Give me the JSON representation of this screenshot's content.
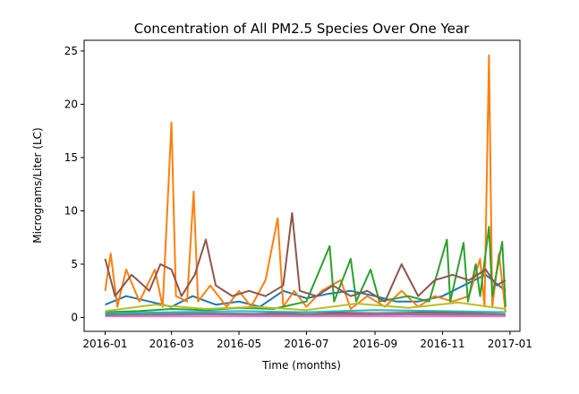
{
  "chart_data": {
    "type": "line",
    "title": "Concentration of All PM2.5 Species Over One Year",
    "xlabel": "Time (months)",
    "ylabel": "Micrograms/Liter (LC)",
    "x_tick_labels": [
      "2016-01",
      "2016-03",
      "2016-05",
      "2016-07",
      "2016-09",
      "2016-11",
      "2017-01"
    ],
    "x_ticks": [
      "2016-01-01",
      "2016-03-01",
      "2016-05-01",
      "2016-07-01",
      "2016-09-01",
      "2016-11-01",
      "2017-01-01"
    ],
    "xlim": [
      "2015-12-13",
      "2017-01-10"
    ],
    "y_ticks": [
      0,
      5,
      10,
      15,
      20,
      25
    ],
    "ylim": [
      -1.3,
      26.0
    ],
    "grid": false,
    "legend": "none",
    "series": [
      {
        "color": "#1f77b4",
        "points": [
          [
            "2016-01-01",
            1.2
          ],
          [
            "2016-01-20",
            2.0
          ],
          [
            "2016-02-10",
            1.5
          ],
          [
            "2016-03-01",
            1.0
          ],
          [
            "2016-03-20",
            2.0
          ],
          [
            "2016-04-10",
            1.2
          ],
          [
            "2016-05-01",
            1.5
          ],
          [
            "2016-05-20",
            1.0
          ],
          [
            "2016-06-10",
            2.5
          ],
          [
            "2016-07-01",
            1.8
          ],
          [
            "2016-07-20",
            2.2
          ],
          [
            "2016-08-10",
            2.5
          ],
          [
            "2016-09-01",
            2.0
          ],
          [
            "2016-09-20",
            1.5
          ],
          [
            "2016-10-10",
            1.5
          ],
          [
            "2016-11-01",
            2.0
          ],
          [
            "2016-11-20",
            3.0
          ],
          [
            "2016-12-10",
            4.0
          ],
          [
            "2016-12-28",
            2.5
          ]
        ]
      },
      {
        "color": "#ff7f0e",
        "points": [
          [
            "2016-01-01",
            2.5
          ],
          [
            "2016-01-06",
            6.0
          ],
          [
            "2016-01-12",
            1.0
          ],
          [
            "2016-01-20",
            4.5
          ],
          [
            "2016-02-01",
            1.5
          ],
          [
            "2016-02-15",
            4.5
          ],
          [
            "2016-02-22",
            1.0
          ],
          [
            "2016-03-01",
            18.3
          ],
          [
            "2016-03-05",
            2.0
          ],
          [
            "2016-03-15",
            1.5
          ],
          [
            "2016-03-21",
            11.8
          ],
          [
            "2016-03-25",
            1.5
          ],
          [
            "2016-04-05",
            3.0
          ],
          [
            "2016-04-20",
            1.0
          ],
          [
            "2016-05-01",
            2.5
          ],
          [
            "2016-05-12",
            1.0
          ],
          [
            "2016-05-25",
            3.5
          ],
          [
            "2016-06-05",
            9.3
          ],
          [
            "2016-06-10",
            1.0
          ],
          [
            "2016-06-20",
            2.5
          ],
          [
            "2016-07-01",
            1.0
          ],
          [
            "2016-07-15",
            2.5
          ],
          [
            "2016-08-01",
            3.5
          ],
          [
            "2016-08-10",
            0.8
          ],
          [
            "2016-08-25",
            2.0
          ],
          [
            "2016-09-10",
            1.0
          ],
          [
            "2016-09-25",
            2.5
          ],
          [
            "2016-10-10",
            1.0
          ],
          [
            "2016-10-25",
            2.0
          ],
          [
            "2016-11-10",
            1.5
          ],
          [
            "2016-11-25",
            2.0
          ],
          [
            "2016-12-05",
            5.5
          ],
          [
            "2016-12-09",
            1.0
          ],
          [
            "2016-12-13",
            24.6
          ],
          [
            "2016-12-16",
            1.0
          ],
          [
            "2016-12-22",
            6.0
          ],
          [
            "2016-12-28",
            0.5
          ]
        ]
      },
      {
        "color": "#2ca02c",
        "points": [
          [
            "2016-01-01",
            0.5
          ],
          [
            "2016-02-01",
            0.6
          ],
          [
            "2016-03-01",
            0.8
          ],
          [
            "2016-04-01",
            0.7
          ],
          [
            "2016-05-01",
            0.9
          ],
          [
            "2016-06-01",
            0.8
          ],
          [
            "2016-07-01",
            1.5
          ],
          [
            "2016-07-22",
            6.7
          ],
          [
            "2016-07-26",
            1.5
          ],
          [
            "2016-08-10",
            5.5
          ],
          [
            "2016-08-15",
            1.5
          ],
          [
            "2016-08-28",
            4.5
          ],
          [
            "2016-09-05",
            1.5
          ],
          [
            "2016-10-01",
            2.0
          ],
          [
            "2016-10-20",
            1.5
          ],
          [
            "2016-11-05",
            7.3
          ],
          [
            "2016-11-08",
            1.5
          ],
          [
            "2016-11-20",
            7.0
          ],
          [
            "2016-11-24",
            1.5
          ],
          [
            "2016-12-01",
            5.0
          ],
          [
            "2016-12-05",
            2.0
          ],
          [
            "2016-12-13",
            8.5
          ],
          [
            "2016-12-16",
            2.0
          ],
          [
            "2016-12-25",
            7.1
          ],
          [
            "2016-12-28",
            1.0
          ]
        ]
      },
      {
        "color": "#d62728",
        "points": [
          [
            "2016-01-01",
            0.3
          ],
          [
            "2016-03-01",
            0.4
          ],
          [
            "2016-05-01",
            0.3
          ],
          [
            "2016-07-01",
            0.5
          ],
          [
            "2016-09-01",
            0.4
          ],
          [
            "2016-11-01",
            0.5
          ],
          [
            "2016-12-28",
            0.3
          ]
        ]
      },
      {
        "color": "#9467bd",
        "points": [
          [
            "2016-01-01",
            0.2
          ],
          [
            "2016-04-01",
            0.3
          ],
          [
            "2016-07-01",
            0.2
          ],
          [
            "2016-10-01",
            0.3
          ],
          [
            "2016-12-28",
            0.2
          ]
        ]
      },
      {
        "color": "#8c564b",
        "points": [
          [
            "2016-01-01",
            5.5
          ],
          [
            "2016-01-10",
            2.0
          ],
          [
            "2016-01-25",
            4.0
          ],
          [
            "2016-02-10",
            2.5
          ],
          [
            "2016-02-20",
            5.0
          ],
          [
            "2016-03-01",
            4.5
          ],
          [
            "2016-03-10",
            2.0
          ],
          [
            "2016-03-22",
            4.0
          ],
          [
            "2016-04-01",
            7.3
          ],
          [
            "2016-04-10",
            3.0
          ],
          [
            "2016-04-25",
            2.0
          ],
          [
            "2016-05-10",
            2.5
          ],
          [
            "2016-05-25",
            2.0
          ],
          [
            "2016-06-10",
            3.0
          ],
          [
            "2016-06-18",
            9.8
          ],
          [
            "2016-06-25",
            2.5
          ],
          [
            "2016-07-10",
            2.0
          ],
          [
            "2016-07-25",
            3.0
          ],
          [
            "2016-08-10",
            2.0
          ],
          [
            "2016-08-25",
            2.5
          ],
          [
            "2016-09-10",
            1.5
          ],
          [
            "2016-09-25",
            5.0
          ],
          [
            "2016-10-10",
            2.0
          ],
          [
            "2016-10-25",
            3.5
          ],
          [
            "2016-11-10",
            4.0
          ],
          [
            "2016-11-25",
            3.5
          ],
          [
            "2016-12-10",
            4.5
          ],
          [
            "2016-12-20",
            3.0
          ],
          [
            "2016-12-28",
            3.5
          ]
        ]
      },
      {
        "color": "#e377c2",
        "points": [
          [
            "2016-01-01",
            0.1
          ],
          [
            "2016-06-01",
            0.1
          ],
          [
            "2016-12-28",
            0.1
          ]
        ]
      },
      {
        "color": "#7f7f7f",
        "points": [
          [
            "2016-01-01",
            0.2
          ],
          [
            "2016-04-01",
            0.4
          ],
          [
            "2016-07-01",
            0.3
          ],
          [
            "2016-10-01",
            0.4
          ],
          [
            "2016-12-28",
            0.3
          ]
        ]
      },
      {
        "color": "#bcbd22",
        "points": [
          [
            "2016-01-01",
            0.6
          ],
          [
            "2016-02-15",
            1.2
          ],
          [
            "2016-04-01",
            0.8
          ],
          [
            "2016-05-15",
            1.0
          ],
          [
            "2016-07-01",
            0.7
          ],
          [
            "2016-08-15",
            1.3
          ],
          [
            "2016-10-01",
            0.9
          ],
          [
            "2016-11-15",
            1.4
          ],
          [
            "2016-12-28",
            0.8
          ]
        ]
      },
      {
        "color": "#17becf",
        "points": [
          [
            "2016-01-01",
            0.4
          ],
          [
            "2016-03-01",
            0.5
          ],
          [
            "2016-05-01",
            0.6
          ],
          [
            "2016-07-01",
            0.5
          ],
          [
            "2016-09-01",
            0.7
          ],
          [
            "2016-11-01",
            0.6
          ],
          [
            "2016-12-28",
            0.5
          ]
        ]
      }
    ]
  }
}
